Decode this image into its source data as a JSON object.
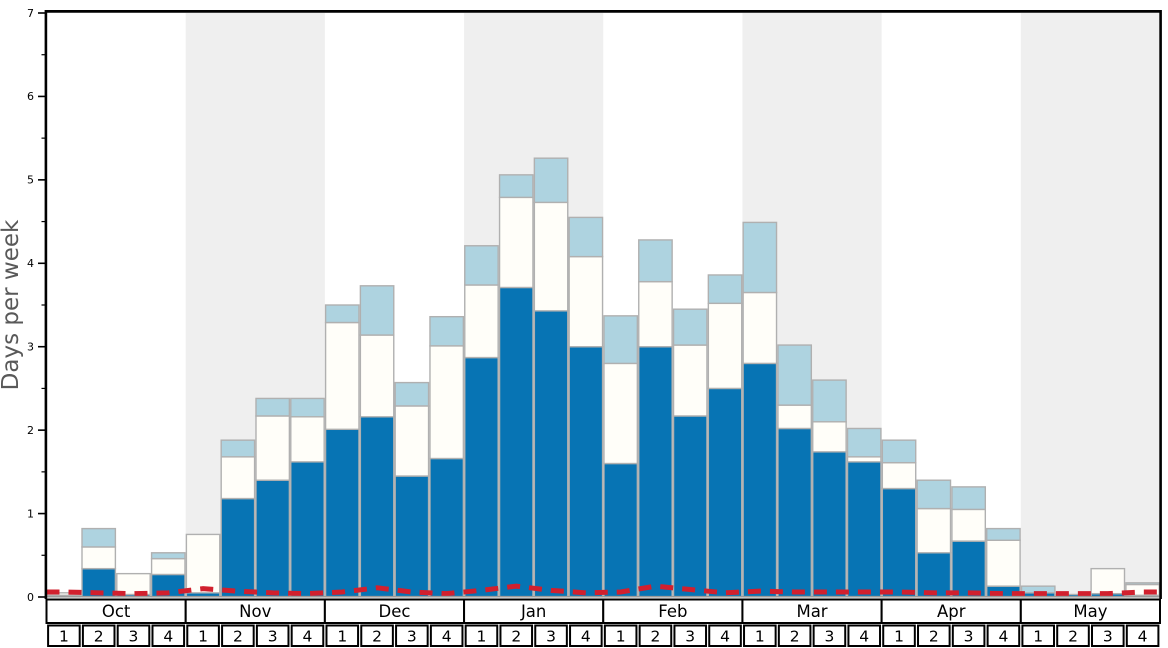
{
  "chart_data": {
    "type": "bar",
    "stacked": true,
    "title": "",
    "xlabel": "",
    "ylabel": "Days per week",
    "ylim": [
      0,
      7
    ],
    "yticks": [
      "0",
      "1",
      "2",
      "3",
      "4",
      "5",
      "6",
      "7"
    ],
    "minor_tick_step": 0.5,
    "grid": false,
    "legend_position": "none",
    "month_labels": [
      "Oct",
      "Nov",
      "Dec",
      "Jan",
      "Feb",
      "Mar",
      "Apr",
      "May"
    ],
    "shaded_month_indices": [
      1,
      3,
      5,
      7
    ],
    "week_labels": [
      "1",
      "2",
      "3",
      "4"
    ],
    "categories": [
      "Oct 1",
      "Oct 2",
      "Oct 3",
      "Oct 4",
      "Nov 1",
      "Nov 2",
      "Nov 3",
      "Nov 4",
      "Dec 1",
      "Dec 2",
      "Dec 3",
      "Dec 4",
      "Jan 1",
      "Jan 2",
      "Jan 3",
      "Jan 4",
      "Feb 1",
      "Feb 2",
      "Feb 3",
      "Feb 4",
      "Mar 1",
      "Mar 2",
      "Mar 3",
      "Mar 4",
      "Apr 1",
      "Apr 2",
      "Apr 3",
      "Apr 4",
      "May 1",
      "May 2",
      "May 3",
      "May 4"
    ],
    "series": [
      {
        "name": "dark-blue-segment",
        "color": "#0774b4",
        "values": [
          0.02,
          0.34,
          0.03,
          0.27,
          0.05,
          1.18,
          1.4,
          1.62,
          2.01,
          2.16,
          1.45,
          1.66,
          2.87,
          3.71,
          3.43,
          3.0,
          1.6,
          3.0,
          2.17,
          2.5,
          2.8,
          2.02,
          1.74,
          1.62,
          1.3,
          0.53,
          0.67,
          0.13,
          0.05,
          0.03,
          0.04,
          0.02
        ]
      },
      {
        "name": "white-segment",
        "color": "#fffef9",
        "values": [
          0.03,
          0.26,
          0.25,
          0.19,
          0.7,
          0.5,
          0.77,
          0.54,
          1.28,
          0.98,
          0.84,
          1.35,
          0.87,
          1.08,
          1.3,
          1.08,
          1.2,
          0.78,
          0.85,
          1.02,
          0.85,
          0.28,
          0.36,
          0.06,
          0.31,
          0.53,
          0.38,
          0.55,
          0.0,
          0.0,
          0.3,
          0.13
        ]
      },
      {
        "name": "light-blue-segment",
        "color": "#aed3e0",
        "values": [
          0.0,
          0.22,
          0.0,
          0.07,
          0.0,
          0.2,
          0.21,
          0.22,
          0.21,
          0.59,
          0.28,
          0.35,
          0.47,
          0.27,
          0.53,
          0.47,
          0.57,
          0.5,
          0.43,
          0.34,
          0.84,
          0.72,
          0.5,
          0.34,
          0.27,
          0.34,
          0.27,
          0.14,
          0.08,
          0.0,
          0.0,
          0.02
        ]
      }
    ],
    "red_dashed_line": {
      "name": "red-dashed-line",
      "color": "#d1202e",
      "values": [
        0.06,
        0.05,
        0.04,
        0.05,
        0.1,
        0.07,
        0.05,
        0.04,
        0.06,
        0.11,
        0.06,
        0.04,
        0.08,
        0.13,
        0.08,
        0.05,
        0.06,
        0.13,
        0.09,
        0.05,
        0.07,
        0.06,
        0.06,
        0.06,
        0.06,
        0.05,
        0.05,
        0.04,
        0.04,
        0.04,
        0.04,
        0.06
      ]
    }
  },
  "colors": {
    "dark_blue": "#0774b4",
    "white_segment": "#fffef9",
    "light_blue": "#aed3e0",
    "segment_border": "#b0b0b0",
    "red_line": "#d1202e",
    "shaded_band": "#efefef",
    "axis": "#000000",
    "zero_line": "#9a9a9a",
    "y_title": "#595959",
    "label_text": "#000000",
    "cell_background": "#ffffff"
  }
}
